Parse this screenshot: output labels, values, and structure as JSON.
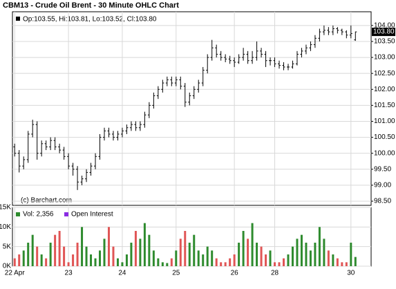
{
  "chart_data": {
    "type": "ohlc",
    "title": "CBM13 - Crude Oil Brent - 30 Minute OHLC Chart",
    "legend": "Op:103.55, Hi:103.81, Lo:103.52, Cl:103.80",
    "last_label": "103.80",
    "copyright": "(c) Barchart.com",
    "color": "#000000",
    "categories": [
      "22 Apr",
      null,
      null,
      null,
      null,
      null,
      null,
      null,
      null,
      null,
      null,
      null,
      "23",
      null,
      null,
      null,
      null,
      null,
      null,
      null,
      null,
      null,
      null,
      null,
      "24",
      null,
      null,
      null,
      null,
      null,
      null,
      null,
      null,
      null,
      null,
      null,
      "25",
      null,
      null,
      null,
      null,
      null,
      null,
      null,
      null,
      null,
      null,
      null,
      null,
      "26",
      null,
      null,
      null,
      null,
      null,
      null,
      null,
      null,
      "28",
      null,
      null,
      null,
      null,
      null,
      null,
      null,
      null,
      null,
      null,
      null,
      null,
      null,
      null,
      null,
      null,
      "30",
      null
    ],
    "open": [
      100.2,
      100.0,
      99.6,
      99.8,
      100.6,
      100.9,
      100.0,
      100.3,
      100.2,
      100.4,
      100.2,
      100.1,
      99.9,
      99.6,
      99.5,
      99.1,
      99.2,
      99.4,
      99.6,
      99.9,
      100.5,
      100.7,
      100.6,
      100.5,
      100.6,
      100.7,
      100.8,
      100.9,
      100.8,
      100.9,
      101.2,
      101.5,
      101.8,
      102.0,
      102.2,
      102.3,
      102.2,
      102.3,
      102.1,
      101.6,
      101.8,
      102.0,
      102.2,
      102.6,
      103.0,
      103.3,
      103.1,
      103.0,
      102.95,
      102.9,
      102.85,
      103.0,
      103.1,
      102.9,
      103.0,
      103.2,
      103.1,
      102.9,
      102.9,
      102.8,
      102.75,
      102.7,
      102.7,
      102.8,
      103.1,
      103.2,
      103.3,
      103.4,
      103.6,
      103.8,
      103.85,
      103.8,
      103.9,
      103.85,
      103.8,
      103.7,
      103.55
    ],
    "high": [
      100.3,
      100.1,
      99.9,
      100.7,
      101.05,
      101.0,
      100.4,
      100.4,
      100.5,
      100.5,
      100.3,
      100.2,
      100.0,
      99.7,
      99.6,
      99.3,
      99.5,
      99.7,
      100.0,
      100.6,
      100.8,
      100.8,
      100.7,
      100.7,
      100.8,
      100.9,
      101.0,
      101.0,
      101.0,
      101.3,
      101.6,
      101.9,
      102.1,
      102.3,
      102.4,
      102.4,
      102.4,
      102.4,
      102.2,
      101.9,
      102.1,
      102.3,
      102.7,
      103.1,
      103.55,
      103.4,
      103.2,
      103.1,
      103.05,
      103.0,
      103.1,
      103.3,
      103.2,
      103.2,
      103.5,
      103.3,
      103.2,
      103.0,
      103.0,
      102.9,
      102.85,
      102.8,
      102.9,
      103.2,
      103.3,
      103.4,
      103.5,
      103.7,
      103.9,
      104.0,
      103.95,
      104.0,
      103.95,
      103.9,
      103.85,
      104.0,
      103.81
    ],
    "low": [
      99.9,
      99.4,
      99.5,
      99.7,
      100.5,
      99.8,
      99.9,
      100.1,
      100.1,
      100.1,
      100.0,
      99.8,
      99.5,
      99.3,
      98.85,
      99.0,
      99.1,
      99.3,
      99.5,
      99.8,
      100.4,
      100.5,
      100.4,
      100.4,
      100.5,
      100.6,
      100.7,
      100.7,
      100.7,
      100.8,
      101.1,
      101.4,
      101.7,
      101.9,
      102.1,
      102.1,
      102.1,
      102.0,
      101.45,
      101.5,
      101.7,
      101.9,
      102.1,
      102.5,
      102.9,
      103.0,
      102.9,
      102.85,
      102.8,
      102.7,
      102.8,
      102.9,
      102.8,
      102.8,
      102.9,
      103.0,
      102.7,
      102.75,
      102.7,
      102.65,
      102.6,
      102.6,
      102.65,
      102.75,
      103.0,
      103.1,
      103.2,
      103.3,
      103.5,
      103.7,
      103.7,
      103.7,
      103.75,
      103.7,
      103.6,
      103.6,
      103.52
    ],
    "close": [
      100.0,
      99.6,
      99.8,
      100.6,
      100.9,
      100.0,
      100.3,
      100.2,
      100.4,
      100.2,
      100.1,
      99.9,
      99.6,
      99.5,
      99.1,
      99.2,
      99.4,
      99.6,
      99.9,
      100.5,
      100.7,
      100.6,
      100.5,
      100.6,
      100.7,
      100.8,
      100.9,
      100.8,
      100.9,
      101.2,
      101.5,
      101.8,
      102.0,
      102.2,
      102.3,
      102.2,
      102.3,
      102.1,
      101.6,
      101.8,
      102.0,
      102.2,
      102.6,
      103.0,
      103.3,
      103.1,
      103.0,
      102.95,
      102.9,
      102.85,
      103.0,
      103.1,
      102.9,
      103.0,
      103.2,
      103.1,
      102.9,
      102.9,
      102.8,
      102.75,
      102.7,
      102.7,
      102.8,
      103.1,
      103.2,
      103.3,
      103.4,
      103.6,
      103.8,
      103.85,
      103.8,
      103.9,
      103.85,
      103.8,
      103.7,
      103.75,
      103.8
    ],
    "ylim": [
      98.37,
      104.43
    ],
    "yticks": [
      {
        "value": 98.5,
        "label": "98.50"
      },
      {
        "value": 99.0,
        "label": "99.00"
      },
      {
        "value": 99.5,
        "label": "99.50"
      },
      {
        "value": 100.0,
        "label": "100.00"
      },
      {
        "value": 100.5,
        "label": "100.50"
      },
      {
        "value": 101.0,
        "label": "101.00"
      },
      {
        "value": 101.5,
        "label": "101.50"
      },
      {
        "value": 102.0,
        "label": "102.00"
      },
      {
        "value": 102.5,
        "label": "102.50"
      },
      {
        "value": 103.0,
        "label": "103.00"
      },
      {
        "value": 103.5,
        "label": "103.50"
      },
      {
        "value": 104.0,
        "label": "104.00"
      }
    ],
    "volume": {
      "name": "Vol: 2,356",
      "other_name": "Open Interest",
      "other_color": "#8a2be2",
      "up_color": "#2e8b2e",
      "down_color": "#e05555",
      "values": [
        2000,
        3000,
        4000,
        6000,
        8000,
        5000,
        3000,
        2000,
        6000,
        8000,
        9000,
        5000,
        1000,
        3000,
        6000,
        10000,
        5000,
        3000,
        2000,
        4000,
        7000,
        10000,
        5000,
        2000,
        1000,
        3000,
        6000,
        9000,
        7000,
        11000,
        8000,
        4000,
        2000,
        1000,
        800,
        2000,
        4000,
        7000,
        9000,
        6000,
        8000,
        4000,
        3000,
        5000,
        4000,
        2000,
        1000,
        1000,
        2000,
        3000,
        6000,
        9000,
        7000,
        11000,
        6000,
        5000,
        3000,
        4000,
        1000,
        1000,
        2000,
        3000,
        5000,
        7000,
        8000,
        6000,
        4000,
        6000,
        10000,
        7000,
        4000,
        3000,
        2000,
        1000,
        1000,
        6000,
        2356
      ],
      "ylim": [
        0,
        15000
      ],
      "yticks": [
        {
          "value": 0,
          "label": "0K"
        },
        {
          "value": 5000,
          "label": "5K"
        },
        {
          "value": 10000,
          "label": "10K"
        },
        {
          "value": 15000,
          "label": "15K"
        }
      ]
    },
    "grid": true
  }
}
